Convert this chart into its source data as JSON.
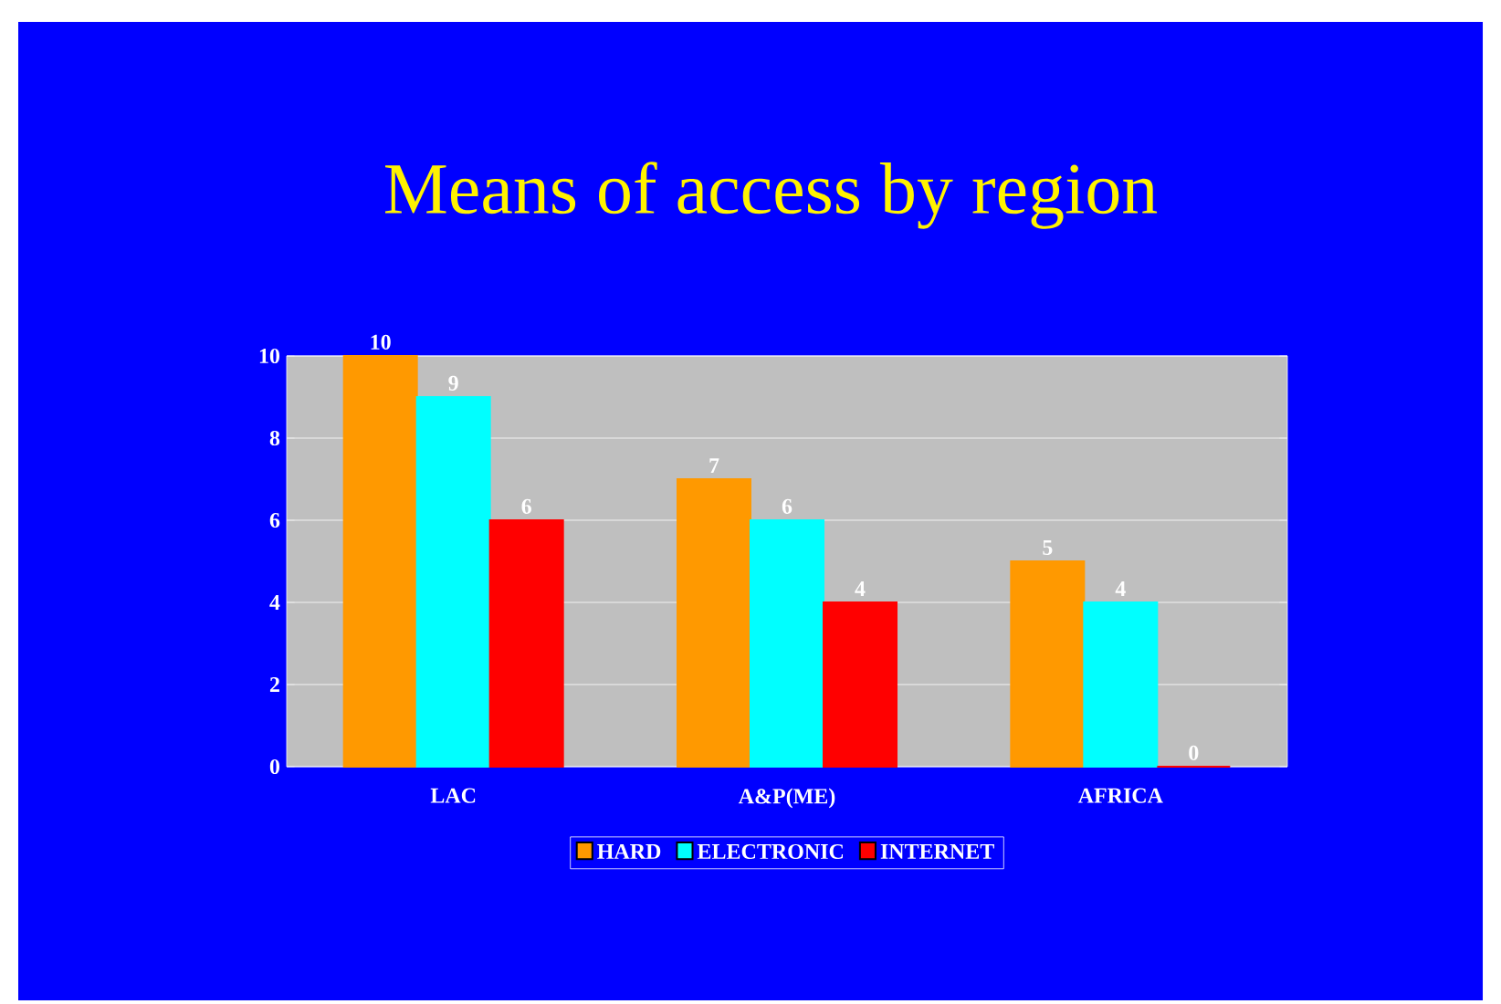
{
  "chart_data": {
    "type": "bar",
    "title": "Means of access by region",
    "categories": [
      "LAC",
      "A&P(ME)",
      "AFRICA"
    ],
    "series": [
      {
        "name": "HARD",
        "color": "#ff9900",
        "values": [
          10,
          7,
          5
        ]
      },
      {
        "name": "ELECTRONIC",
        "color": "#00ffff",
        "values": [
          9,
          6,
          4
        ]
      },
      {
        "name": "INTERNET",
        "color": "#ff0000",
        "values": [
          6,
          4,
          0
        ]
      }
    ],
    "ylim": [
      0,
      10
    ],
    "yticks": [
      0,
      2,
      4,
      6,
      8,
      10
    ],
    "grid": "y",
    "legend": "bottom",
    "data_labels": true
  }
}
